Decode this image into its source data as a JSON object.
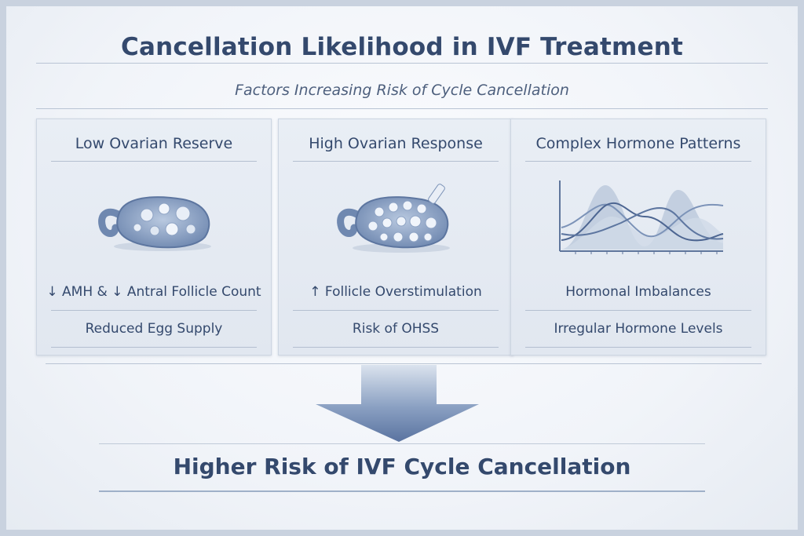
{
  "title": "Cancellation Likelihood in IVF Treatment",
  "subtitle": "Factors Increasing Risk of Cycle Cancellation",
  "cards": [
    {
      "heading": "Low Ovarian Reserve",
      "illustration": "ovary-few-follicles",
      "line1": "↓ AMH & ↓ Antral Follicle Count",
      "line2": "Reduced Egg Supply"
    },
    {
      "heading": "High Ovarian Response",
      "illustration": "ovary-many-follicles",
      "line1": "↑ Follicle Overstimulation",
      "line2": "Risk of OHSS"
    },
    {
      "heading": "Complex Hormone Patterns",
      "illustration": "hormone-wave-chart",
      "line1": "Hormonal Imbalances",
      "line2": "Irregular Hormone Levels"
    }
  ],
  "conclusion": "Higher Risk of IVF Cycle Cancellation",
  "colors": {
    "text": "#34496d",
    "accent": "#5e7aa6",
    "card": "#e5ebf3"
  }
}
